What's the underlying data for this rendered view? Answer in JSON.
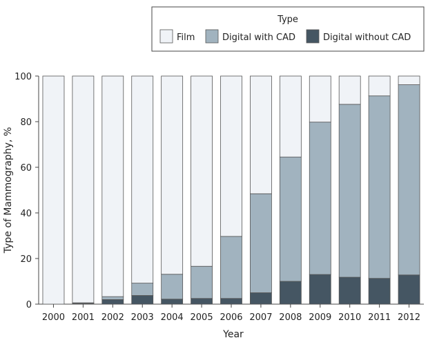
{
  "chart_data": {
    "type": "bar",
    "stacked": true,
    "categories": [
      "2000",
      "2001",
      "2002",
      "2003",
      "2004",
      "2005",
      "2006",
      "2007",
      "2008",
      "2009",
      "2010",
      "2011",
      "2012"
    ],
    "series": [
      {
        "name": "Digital without CAD",
        "color": "#455663",
        "values": [
          0,
          0.3,
          2,
          3.8,
          2.2,
          2.5,
          2.5,
          5,
          10,
          13,
          11.8,
          11.3,
          12.8
        ]
      },
      {
        "name": "Digital with CAD",
        "color": "#a1b3bf",
        "values": [
          0,
          0.3,
          1.3,
          5.4,
          10.9,
          14.1,
          27.2,
          43.4,
          54.5,
          66.8,
          75.8,
          80,
          83.4
        ]
      },
      {
        "name": "Film",
        "color": "#f0f3f7",
        "values": [
          100,
          99.4,
          96.7,
          90.8,
          86.9,
          83.4,
          70.3,
          51.6,
          35.5,
          20.2,
          12.4,
          8.7,
          3.8
        ]
      }
    ],
    "legend_order": [
      "Film",
      "Digital with CAD",
      "Digital without CAD"
    ],
    "legend_title": "Type",
    "legend_position": "top-right",
    "xlabel": "Year",
    "ylabel": "Type of Mammography, %",
    "ylim": [
      0,
      100
    ],
    "yticks": [
      0,
      20,
      40,
      60,
      80,
      100
    ],
    "grid": false
  }
}
